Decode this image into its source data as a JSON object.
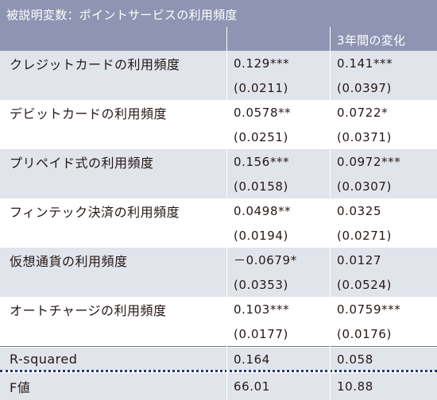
{
  "title": "被説明変数：ポイントサービスの利用頻度",
  "col3_header": "3年間の変化",
  "rows": [
    {
      "label": "クレジットカードの利用頻度",
      "v1": "0.129***",
      "se1": "(0.0211)",
      "v2": "0.141***",
      "se2": "(0.0397)"
    },
    {
      "label": "デビットカードの利用頻度",
      "v1": "0.0578**",
      "se1": "(0.0251)",
      "v2": "0.0722*",
      "se2": "(0.0371)"
    },
    {
      "label": "プリペイド式の利用頻度",
      "v1": "0.156***",
      "se1": "(0.0158)",
      "v2": "0.0972***",
      "se2": "(0.0307)"
    },
    {
      "label": "フィンテック決済の利用頻度",
      "v1": "0.0498**",
      "se1": "(0.0194)",
      "v2": "0.0325",
      "se2": "(0.0271)"
    },
    {
      "label": "仮想通貨の利用頻度",
      "v1": "－0.0679*",
      "se1": "(0.0353)",
      "v2": "0.0127",
      "se2": "(0.0524)"
    },
    {
      "label": "オートチャージの利用頻度",
      "v1": "0.103***",
      "se1": "(0.0177)",
      "v2": "0.0759***",
      "se2": "(0.0176)"
    }
  ],
  "stats": [
    {
      "label": "R-squared",
      "v1": "0.164",
      "v2": "0.058"
    },
    {
      "label": "F値",
      "v1": "66.01",
      "v2": "10.88"
    }
  ]
}
